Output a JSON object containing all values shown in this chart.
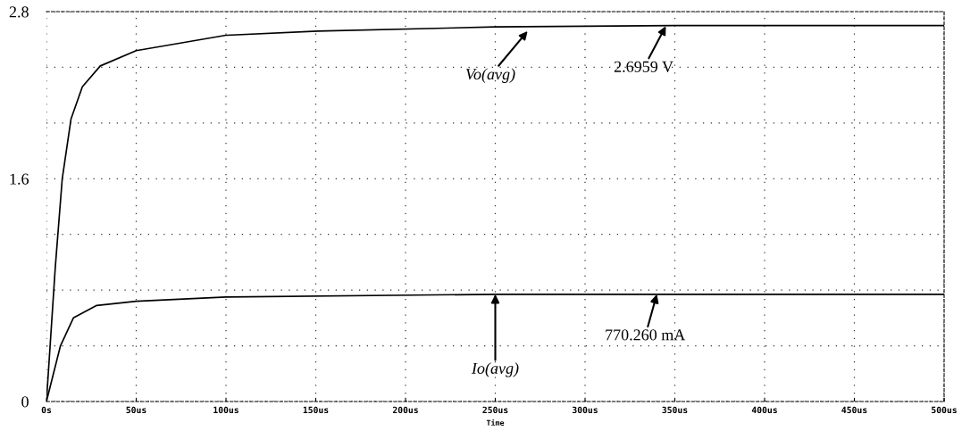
{
  "chart_data": {
    "type": "line",
    "xlabel": "Time",
    "xlim": [
      0,
      500
    ],
    "ylim": [
      0,
      2.8
    ],
    "xticks": [
      {
        "value": 0,
        "label": "0s"
      },
      {
        "value": 50,
        "label": "50us"
      },
      {
        "value": 100,
        "label": "100us"
      },
      {
        "value": 150,
        "label": "150us"
      },
      {
        "value": 200,
        "label": "200us"
      },
      {
        "value": 250,
        "label": "250us"
      },
      {
        "value": 300,
        "label": "300us"
      },
      {
        "value": 350,
        "label": "350us"
      },
      {
        "value": 400,
        "label": "400us"
      },
      {
        "value": 450,
        "label": "450us"
      },
      {
        "value": 500,
        "label": "500us"
      }
    ],
    "yticks": [
      0,
      {
        "value": 0.4,
        "label": null
      },
      {
        "value": 0.8,
        "label": null
      },
      {
        "value": 1.2,
        "label": null
      },
      1.6,
      {
        "value": 2.0,
        "label": null
      },
      {
        "value": 2.4,
        "label": null
      },
      2.8
    ],
    "grid": true,
    "line_style": "solid",
    "series": [
      {
        "color": "#000000",
        "x": [
          0,
          4.9,
          8.8,
          13.7,
          20,
          30,
          50,
          100,
          151,
          250,
          350,
          500
        ],
        "values": [
          0,
          0.96,
          1.6,
          2.03,
          2.26,
          2.41,
          2.52,
          2.63,
          2.66,
          2.69,
          2.7,
          2.7
        ]
      },
      {
        "color": "#000000",
        "x": [
          0,
          7.8,
          15,
          28,
          50,
          100,
          250,
          340,
          500
        ],
        "values": [
          0,
          0.4,
          0.6,
          0.69,
          0.72,
          0.75,
          0.77,
          0.77,
          0.77
        ]
      }
    ],
    "annotations": [
      {
        "text": "Vo(avg)",
        "x": 268,
        "y": 2.66
      },
      {
        "text": "2.6959 V",
        "x": 345,
        "y": 2.6959
      },
      {
        "text": "Io(avg)",
        "x": 250,
        "y": 0.77
      },
      {
        "text": "770.260 mA",
        "x": 340,
        "y": 0.77
      }
    ]
  }
}
